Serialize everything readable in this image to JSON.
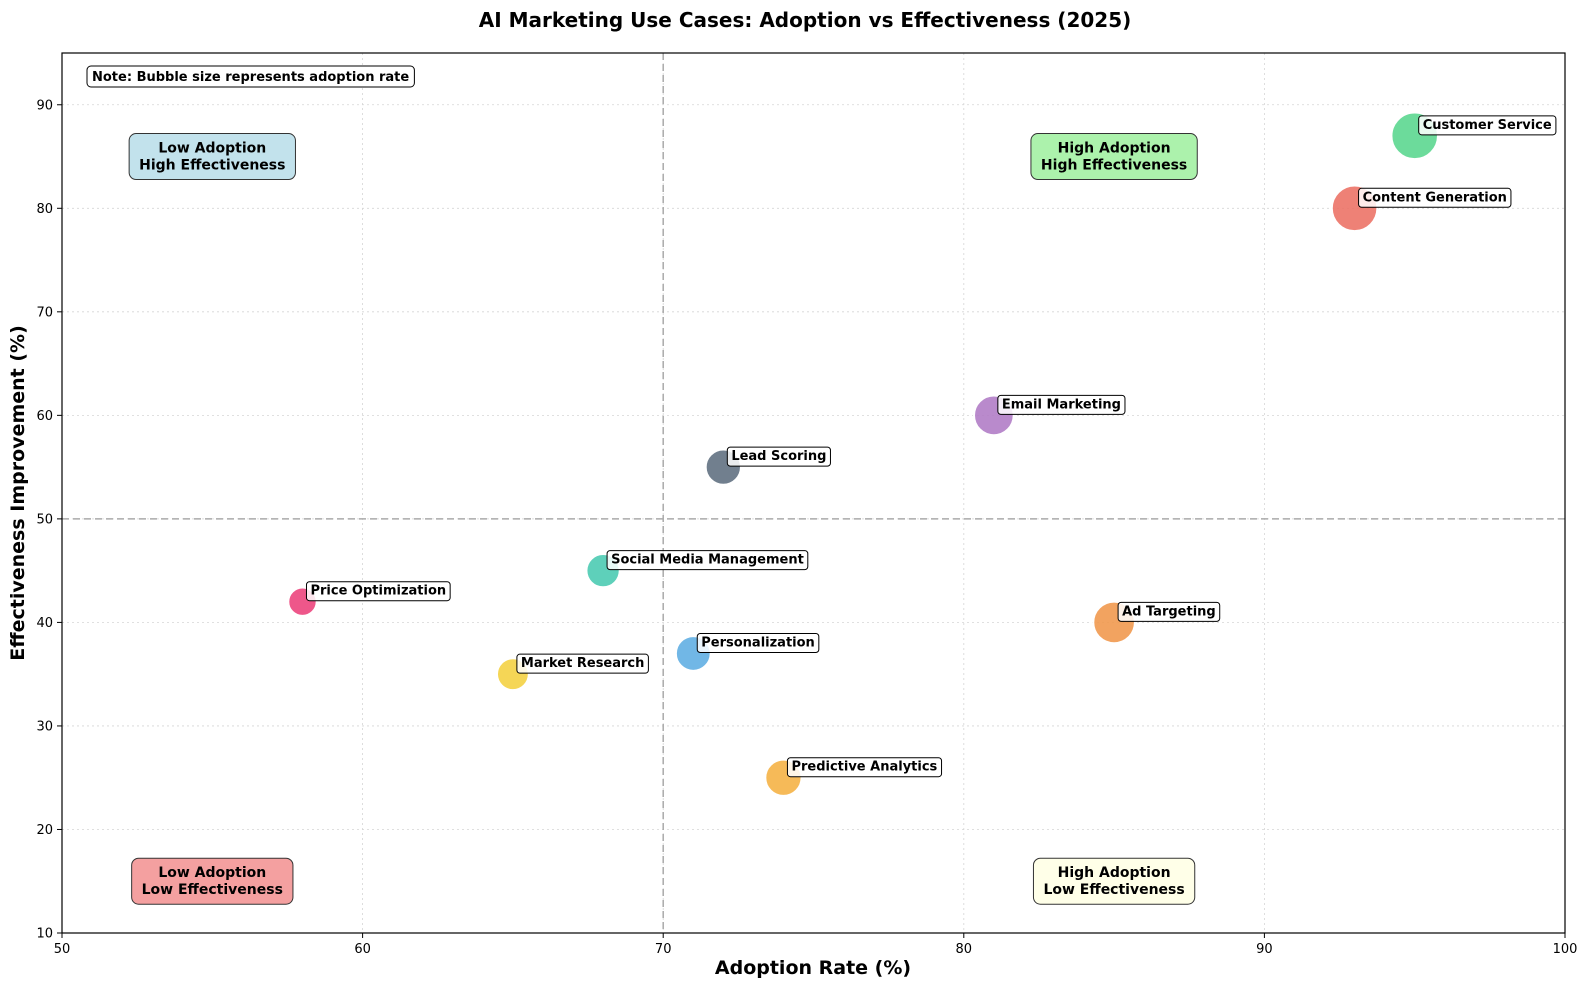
{
  "chart_data": {
    "type": "scatter",
    "title": "AI Marketing Use Cases: Adoption vs Effectiveness (2025)",
    "xlabel": "Adoption Rate (%)",
    "ylabel": "Effectiveness Improvement (%)",
    "xlim": [
      50,
      100
    ],
    "ylim": [
      10,
      95
    ],
    "xticks": [
      50,
      60,
      70,
      80,
      90,
      100
    ],
    "yticks": [
      10,
      20,
      30,
      40,
      50,
      60,
      70,
      80,
      90
    ],
    "grid": true,
    "reference_lines": {
      "x": 70,
      "y": 50
    },
    "note": "Note: Bubble size represents adoption rate",
    "quadrants": [
      {
        "id": "tl",
        "line1": "Low Adoption",
        "line2": "High Effectiveness",
        "color": "#add8e6"
      },
      {
        "id": "tr",
        "line1": "High Adoption",
        "line2": "High Effectiveness",
        "color": "#90ee90"
      },
      {
        "id": "bl",
        "line1": "Low Adoption",
        "line2": "Low Effectiveness",
        "color": "#f08080"
      },
      {
        "id": "br",
        "line1": "High Adoption",
        "line2": "Low Effectiveness",
        "color": "#ffffe0"
      }
    ],
    "points": [
      {
        "label": "Customer Service",
        "x": 95,
        "y": 87,
        "color": "#58d68d"
      },
      {
        "label": "Content Generation",
        "x": 93,
        "y": 80,
        "color": "#ec7063"
      },
      {
        "label": "Email Marketing",
        "x": 81,
        "y": 60,
        "color": "#af7ac5"
      },
      {
        "label": "Lead Scoring",
        "x": 72,
        "y": 55,
        "color": "#5d6d7e"
      },
      {
        "label": "Social Media Management",
        "x": 68,
        "y": 45,
        "color": "#48c9b0"
      },
      {
        "label": "Price Optimization",
        "x": 58,
        "y": 42,
        "color": "#ec407a"
      },
      {
        "label": "Ad Targeting",
        "x": 85,
        "y": 40,
        "color": "#f0964a"
      },
      {
        "label": "Personalization",
        "x": 71,
        "y": 37,
        "color": "#5dade2"
      },
      {
        "label": "Market Research",
        "x": 65,
        "y": 35,
        "color": "#f4d03f"
      },
      {
        "label": "Predictive Analytics",
        "x": 74,
        "y": 25,
        "color": "#f5b041"
      }
    ]
  }
}
